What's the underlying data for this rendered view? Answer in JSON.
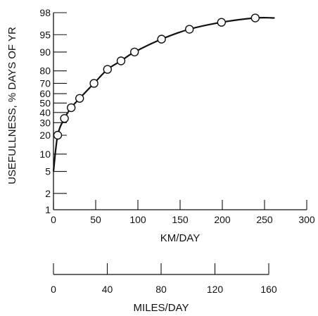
{
  "chart_data": {
    "type": "line",
    "title": "",
    "ylabel": "USEFULLNESS, % DAYS OF YR",
    "xlabel": "KM/DAY",
    "secondary_xlabel": "MILES/DAY",
    "y_scale": "probability",
    "x_ticks": [
      0,
      50,
      100,
      150,
      200,
      250,
      300
    ],
    "x_tick_labels": [
      "0",
      "50",
      "100",
      "150",
      "200",
      "250",
      "300"
    ],
    "x_range": [
      0,
      300
    ],
    "y_ticks": [
      1,
      2,
      5,
      10,
      20,
      30,
      40,
      50,
      60,
      70,
      80,
      90,
      95,
      98
    ],
    "y_tick_labels": [
      "1",
      "2",
      "5",
      "10",
      "20",
      "30",
      "40",
      "50",
      "60",
      "70",
      "80",
      "90",
      "95",
      "98"
    ],
    "secondary_x_ticks": [
      0,
      40,
      80,
      120,
      160
    ],
    "secondary_x_tick_labels": [
      "0",
      "40",
      "80",
      "120",
      "160"
    ],
    "secondary_x_range": [
      0,
      160
    ],
    "series": [
      {
        "points": [
          {
            "x": 5,
            "y": 20
          },
          {
            "x": 13,
            "y": 34
          },
          {
            "x": 21,
            "y": 45
          },
          {
            "x": 31,
            "y": 55
          },
          {
            "x": 48,
            "y": 70
          },
          {
            "x": 64,
            "y": 81
          },
          {
            "x": 80,
            "y": 86
          },
          {
            "x": 96,
            "y": 90
          },
          {
            "x": 128,
            "y": 94
          },
          {
            "x": 161,
            "y": 96
          },
          {
            "x": 199,
            "y": 97
          },
          {
            "x": 239,
            "y": 97.5
          }
        ]
      }
    ],
    "curve": [
      [
        0,
        5
      ],
      [
        5,
        20
      ],
      [
        13,
        34
      ],
      [
        21,
        45
      ],
      [
        31,
        55
      ],
      [
        48,
        70
      ],
      [
        64,
        81
      ],
      [
        80,
        86
      ],
      [
        96,
        90
      ],
      [
        128,
        94
      ],
      [
        161,
        96
      ],
      [
        199,
        97
      ],
      [
        239,
        97.5
      ],
      [
        262,
        97.5
      ]
    ],
    "legend": "none",
    "grid": false
  }
}
